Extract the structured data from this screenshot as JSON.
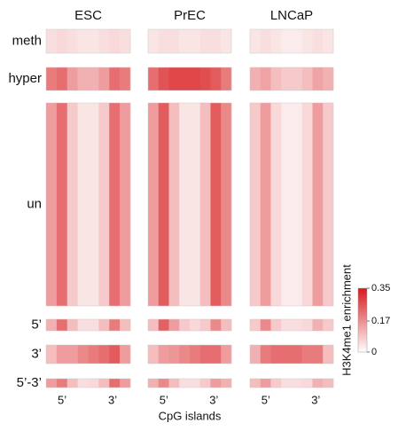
{
  "chart_data": {
    "type": "heatmap",
    "columns": [
      "ESC",
      "PrEC",
      "LNCaP"
    ],
    "rows": [
      "meth",
      "hyper",
      "un",
      "5’",
      "3’",
      "5’-3’"
    ],
    "x_labels": [
      "5’",
      "3’"
    ],
    "xlabel": "CpG islands",
    "colorbar_label": "H3K4me1 enrichment",
    "colors": [
      "#ffffff",
      "#d7191c"
    ],
    "clim": [
      0,
      0.35
    ],
    "cticks": [
      0,
      0.17,
      0.35
    ],
    "values": [
      [
        [
          0.05,
          0.06,
          0.05,
          0.04,
          0.04,
          0.05,
          0.06,
          0.05
        ],
        [
          0.04,
          0.05,
          0.05,
          0.04,
          0.04,
          0.05,
          0.05,
          0.04
        ],
        [
          0.04,
          0.05,
          0.04,
          0.03,
          0.03,
          0.04,
          0.05,
          0.04
        ]
      ],
      [
        [
          0.2,
          0.22,
          0.15,
          0.12,
          0.12,
          0.15,
          0.22,
          0.2
        ],
        [
          0.22,
          0.26,
          0.28,
          0.28,
          0.28,
          0.27,
          0.25,
          0.2
        ],
        [
          0.12,
          0.14,
          0.1,
          0.08,
          0.08,
          0.1,
          0.14,
          0.12
        ]
      ],
      [
        [
          0.15,
          0.22,
          0.08,
          0.04,
          0.04,
          0.08,
          0.22,
          0.15
        ],
        [
          0.15,
          0.25,
          0.1,
          0.04,
          0.04,
          0.1,
          0.25,
          0.18
        ],
        [
          0.08,
          0.15,
          0.06,
          0.03,
          0.03,
          0.06,
          0.15,
          0.08
        ]
      ],
      [
        [
          0.12,
          0.22,
          0.1,
          0.05,
          0.05,
          0.1,
          0.2,
          0.1
        ],
        [
          0.1,
          0.24,
          0.15,
          0.08,
          0.06,
          0.08,
          0.18,
          0.1
        ],
        [
          0.08,
          0.18,
          0.08,
          0.05,
          0.05,
          0.06,
          0.12,
          0.08
        ]
      ],
      [
        [
          0.1,
          0.15,
          0.15,
          0.18,
          0.2,
          0.22,
          0.25,
          0.15
        ],
        [
          0.1,
          0.15,
          0.16,
          0.18,
          0.2,
          0.22,
          0.22,
          0.15
        ],
        [
          0.12,
          0.2,
          0.22,
          0.22,
          0.22,
          0.2,
          0.2,
          0.1
        ]
      ],
      [
        [
          0.15,
          0.2,
          0.1,
          0.05,
          0.06,
          0.1,
          0.22,
          0.15
        ],
        [
          0.12,
          0.18,
          0.1,
          0.05,
          0.05,
          0.08,
          0.15,
          0.12
        ],
        [
          0.1,
          0.15,
          0.08,
          0.05,
          0.05,
          0.06,
          0.12,
          0.1
        ]
      ]
    ]
  }
}
